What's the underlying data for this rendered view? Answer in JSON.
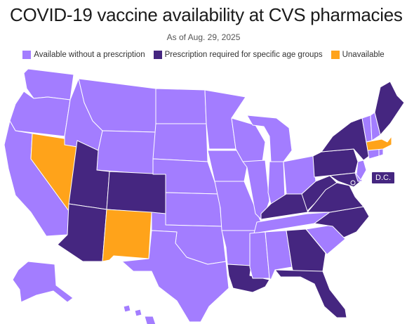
{
  "title": "COVID-19 vaccine availability at CVS pharmacies",
  "subtitle": "As of Aug. 29, 2025",
  "legend": [
    {
      "label": "Available without a prescription",
      "color": "#a37dff"
    },
    {
      "label": "Prescription required for specific age groups",
      "color": "#452680"
    },
    {
      "label": "Unavailable",
      "color": "#ffa31a"
    }
  ],
  "colors": {
    "available": "#a37dff",
    "prescription": "#452680",
    "unavailable": "#ffa31a",
    "border": "#ffffff"
  },
  "dc_label": "D.C.",
  "states": {
    "available": [
      "WA",
      "OR",
      "CA",
      "ID",
      "MT",
      "WY",
      "ND",
      "SD",
      "NE",
      "KS",
      "OK",
      "TX",
      "MN",
      "IA",
      "MO",
      "AR",
      "WI",
      "IL",
      "MI",
      "IN",
      "OH",
      "MS",
      "AL",
      "SC",
      "TN",
      "VT",
      "NH",
      "CT",
      "RI",
      "NJ",
      "DE",
      "AK",
      "HI"
    ],
    "prescription": [
      "UT",
      "AZ",
      "CO",
      "LA",
      "GA",
      "FL",
      "KY",
      "WV",
      "VA",
      "NC",
      "PA",
      "NY",
      "ME",
      "MD",
      "DC"
    ],
    "unavailable": [
      "NV",
      "NM",
      "MA"
    ]
  }
}
